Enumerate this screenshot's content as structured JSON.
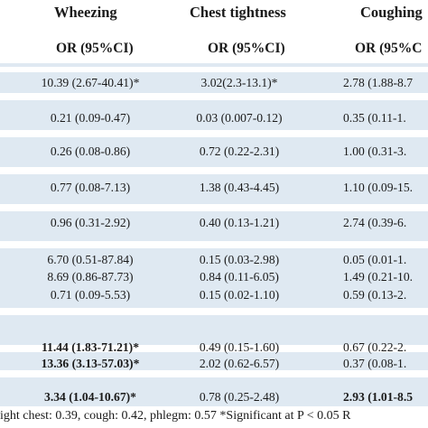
{
  "columns": [
    {
      "header": "Wheezing",
      "subheader": "OR (95%CI)"
    },
    {
      "header": "Chest tightness",
      "subheader": "OR (95%CI)"
    },
    {
      "header": "Coughing",
      "subheader": "OR (95%C"
    }
  ],
  "rows": [
    {
      "cells": [
        "10.39 (2.67-40.41)*",
        "3.02(2.3-13.1)*",
        "2.78 (1.88-8.7"
      ],
      "bold": [
        true,
        true,
        true
      ]
    },
    {
      "cells": [
        "0.21 (0.09-0.47)",
        "0.03 (0.007-0.12)",
        "0.35 (0.11-1."
      ],
      "bold": [
        false,
        false,
        false
      ]
    },
    {
      "cells": [
        "0.26 (0.08-0.86)",
        "0.72 (0.22-2.31)",
        "1.00 (0.31-3."
      ],
      "bold": [
        false,
        false,
        false
      ]
    },
    {
      "cells": [
        "0.77 (0.08-7.13)",
        "1.38 (0.43-4.45)",
        "1.10 (0.09-15."
      ],
      "bold": [
        false,
        false,
        false
      ]
    },
    {
      "cells": [
        "0.96 (0.31-2.92)",
        "0.40 (0.13-1.21)",
        "2.74 (0.39-6."
      ],
      "bold": [
        false,
        false,
        false
      ]
    },
    {
      "cells": [
        "6.70 (0.51-87.84)",
        "0.15 (0.03-2.98)",
        "0.05 (0.01-1."
      ],
      "bold": [
        false,
        false,
        false
      ]
    },
    {
      "cells": [
        "8.69 (0.86-87.73)",
        "0.84 (0.11-6.05)",
        "1.49 (0.21-10."
      ],
      "bold": [
        false,
        false,
        false
      ]
    },
    {
      "cells": [
        "0.71 (0.09-5.53)",
        "0.15 (0.02-1.10)",
        "0.59 (0.13-2."
      ],
      "bold": [
        false,
        false,
        false
      ]
    },
    {
      "cells": [
        "11.44 (1.83-71.21)*",
        "0.49 (0.15-1.60)",
        "0.67 (0.22-2."
      ],
      "bold": [
        true,
        false,
        false
      ]
    },
    {
      "cells": [
        "13.36 (3.13-57.03)*",
        "2.02 (0.62-6.57)",
        "0.37 (0.08-1."
      ],
      "bold": [
        true,
        false,
        false
      ]
    },
    {
      "cells": [
        "3.34 (1.04-10.67)*",
        "0.78 (0.25-2.48)",
        "2.93 (1.01-8.5"
      ],
      "bold": [
        true,
        false,
        true
      ]
    }
  ],
  "footnote": "ight chest: 0.39, cough: 0.42, phlegm: 0.57 *Significant at P < 0.05    R"
}
